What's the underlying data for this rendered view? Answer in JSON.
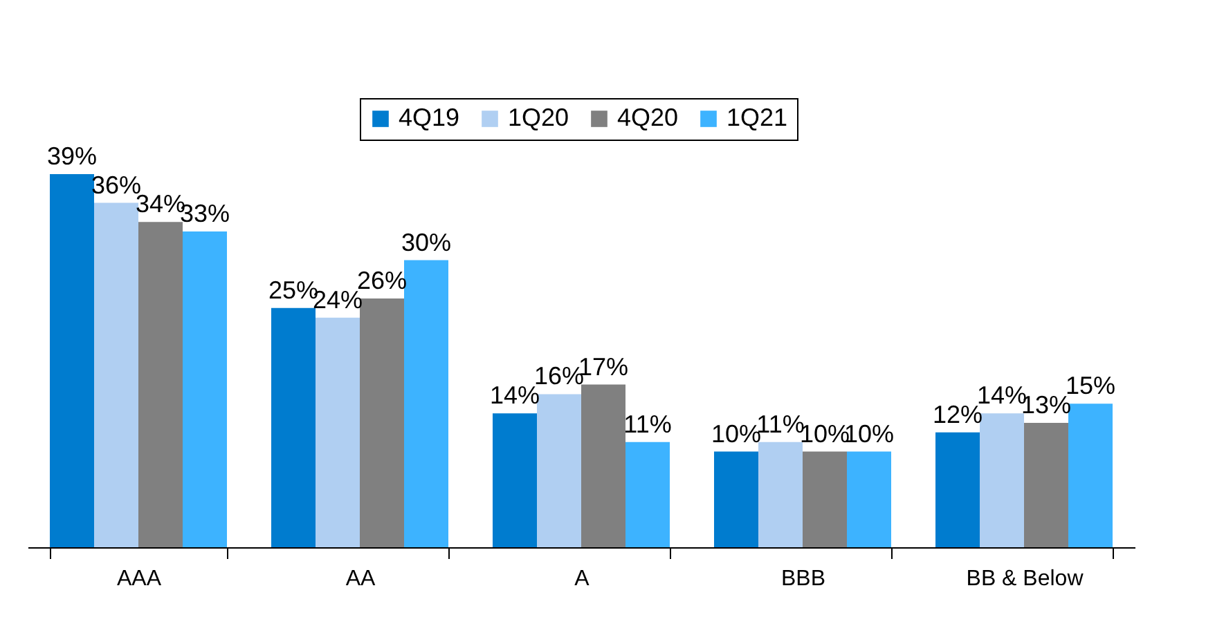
{
  "chart_data": {
    "type": "bar",
    "categories": [
      "AAA",
      "AA",
      "A",
      "BBB",
      "BB & Below"
    ],
    "series": [
      {
        "name": "4Q19",
        "color": "#007ccf",
        "values": [
          39,
          25,
          14,
          10,
          12
        ],
        "value_labels": [
          "39%",
          "25%",
          "14%",
          "10%",
          "12%"
        ]
      },
      {
        "name": "1Q20",
        "color": "#b0cff2",
        "values": [
          36,
          24,
          16,
          11,
          14
        ],
        "value_labels": [
          "36%",
          "24%",
          "16%",
          "11%",
          "14%"
        ]
      },
      {
        "name": "4Q20",
        "color": "#808080",
        "values": [
          34,
          26,
          17,
          10,
          13
        ],
        "value_labels": [
          "34%",
          "26%",
          "17%",
          "10%",
          "13%"
        ]
      },
      {
        "name": "1Q21",
        "color": "#3db3ff",
        "values": [
          33,
          30,
          11,
          10,
          15
        ],
        "value_labels": [
          "33%",
          "30%",
          "11%",
          "10%",
          "15%"
        ]
      }
    ],
    "legend": "top",
    "grid": false
  }
}
